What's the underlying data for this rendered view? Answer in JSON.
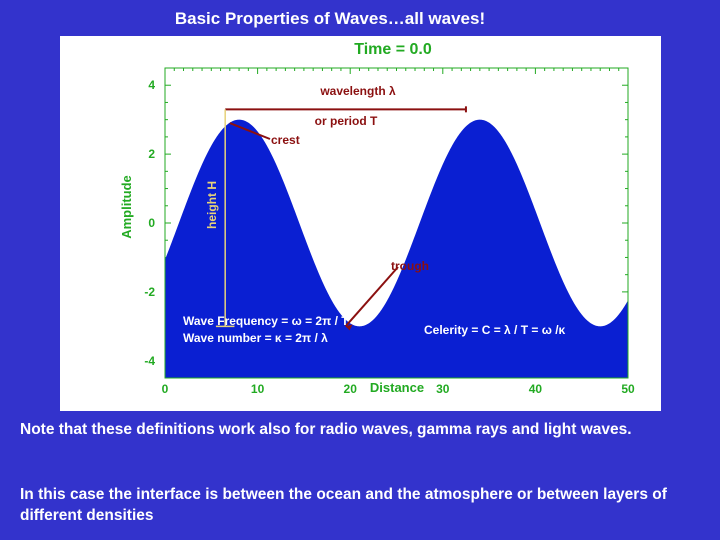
{
  "slide": {
    "title": "Basic Properties of Waves…all waves!",
    "notes": [
      "Note that these definitions work also for radio waves, gamma rays and light waves.",
      "In this case the interface is between the ocean and the atmosphere or between layers of different densities"
    ]
  },
  "colors": {
    "background": "#3333cc",
    "wave_fill": "#0a1fd2",
    "axis_green": "#22aa22",
    "annotation_red": "#8b1010",
    "height_yellow": "#e6d27a"
  },
  "chart_data": {
    "type": "area",
    "title": "Time =  0.0",
    "xlabel": "Distance",
    "ylabel": "Amplitude",
    "xlim": [
      0,
      50
    ],
    "ylim": [
      -4.5,
      4.5
    ],
    "xticks": [
      "0",
      "10",
      "20",
      "30",
      "40",
      "50"
    ],
    "yticks": [
      "4",
      "2",
      "0",
      "-2",
      "-4"
    ],
    "series": [
      {
        "function": "3 * sin(2*pi*(x - 1.5)/26)",
        "x_range": [
          0,
          50
        ]
      }
    ],
    "annotations": {
      "wavelength": "wavelength λ",
      "period": "or period T",
      "crest": "crest",
      "height": "height H",
      "trough": "trough",
      "wave_frequency": "Wave Frequency = ω = 2π / T",
      "wave_number": "Wave number = κ = 2π / λ",
      "celerity": "Celerity = C = λ / T = ω /κ"
    }
  }
}
